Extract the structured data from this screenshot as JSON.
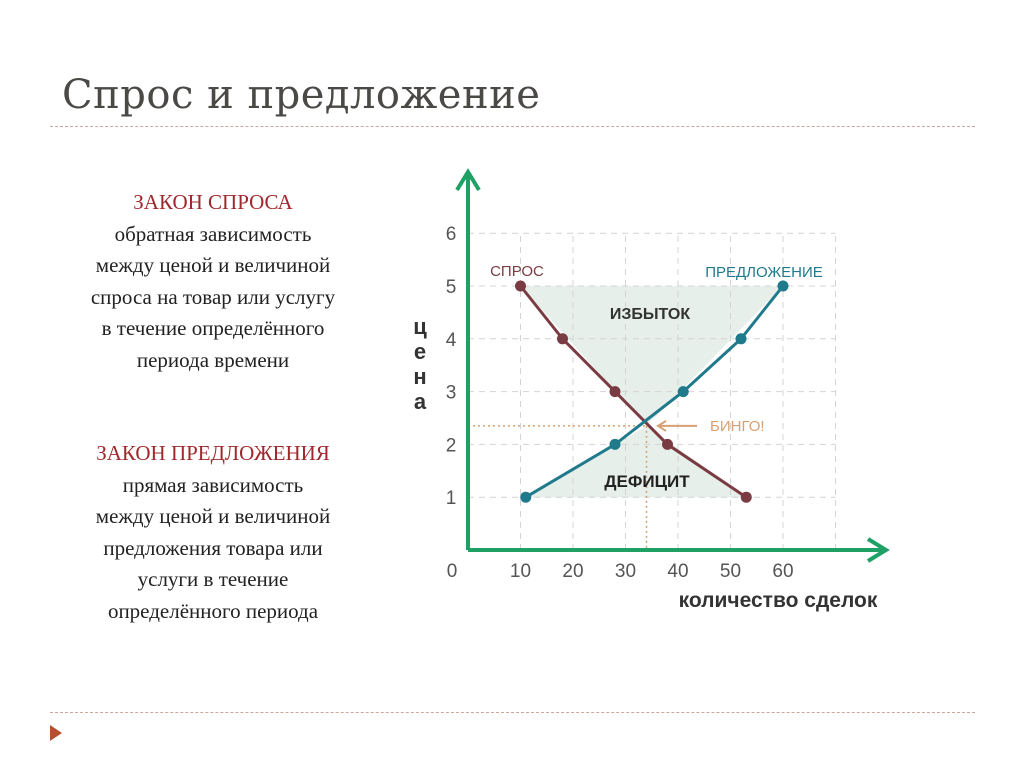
{
  "slide": {
    "title": "Спрос и предложение",
    "blocks": [
      {
        "heading": "ЗАКОН СПРОСА",
        "lines": [
          "обратная зависимость",
          "между ценой и величиной",
          "спроса на товар или услугу",
          "в течение определённого",
          "периода времени"
        ]
      },
      {
        "heading": "ЗАКОН ПРЕДЛОЖЕНИЯ",
        "lines": [
          "прямая зависимость",
          "между ценой и величиной",
          "предложения товара или",
          "услуги в течение",
          "определённого периода"
        ]
      }
    ],
    "accent_color": "#a0282d",
    "bullet_icon": "triangle-right-icon"
  },
  "chart_data": {
    "type": "line",
    "xlabel": "количество сделок",
    "ylabel": "цена",
    "x_ticks": [
      "0",
      "10",
      "20",
      "30",
      "40",
      "50",
      "60"
    ],
    "y_ticks": [
      "1",
      "2",
      "3",
      "4",
      "5",
      "6"
    ],
    "xlim": [
      0,
      60
    ],
    "ylim": [
      0,
      6
    ],
    "grid": true,
    "series": [
      {
        "name": "СПРОС",
        "color": "#7a3b42",
        "points": [
          [
            10,
            5
          ],
          [
            18,
            4
          ],
          [
            28,
            3
          ],
          [
            38,
            2
          ],
          [
            53,
            1
          ]
        ]
      },
      {
        "name": "ПРЕДЛОЖЕНИЕ",
        "color": "#1f7a8c",
        "points": [
          [
            11,
            1
          ],
          [
            28,
            2
          ],
          [
            41,
            3
          ],
          [
            52,
            4
          ],
          [
            60,
            5
          ]
        ]
      }
    ],
    "annotations": {
      "surplus": "ИЗБЫТОК",
      "shortage": "ДЕФИЦИТ",
      "equilibrium": "БИНГО!",
      "equilibrium_point": [
        34,
        2.35
      ]
    },
    "axis_color": "#1fa064",
    "equilibrium_color": "#d8a070"
  }
}
